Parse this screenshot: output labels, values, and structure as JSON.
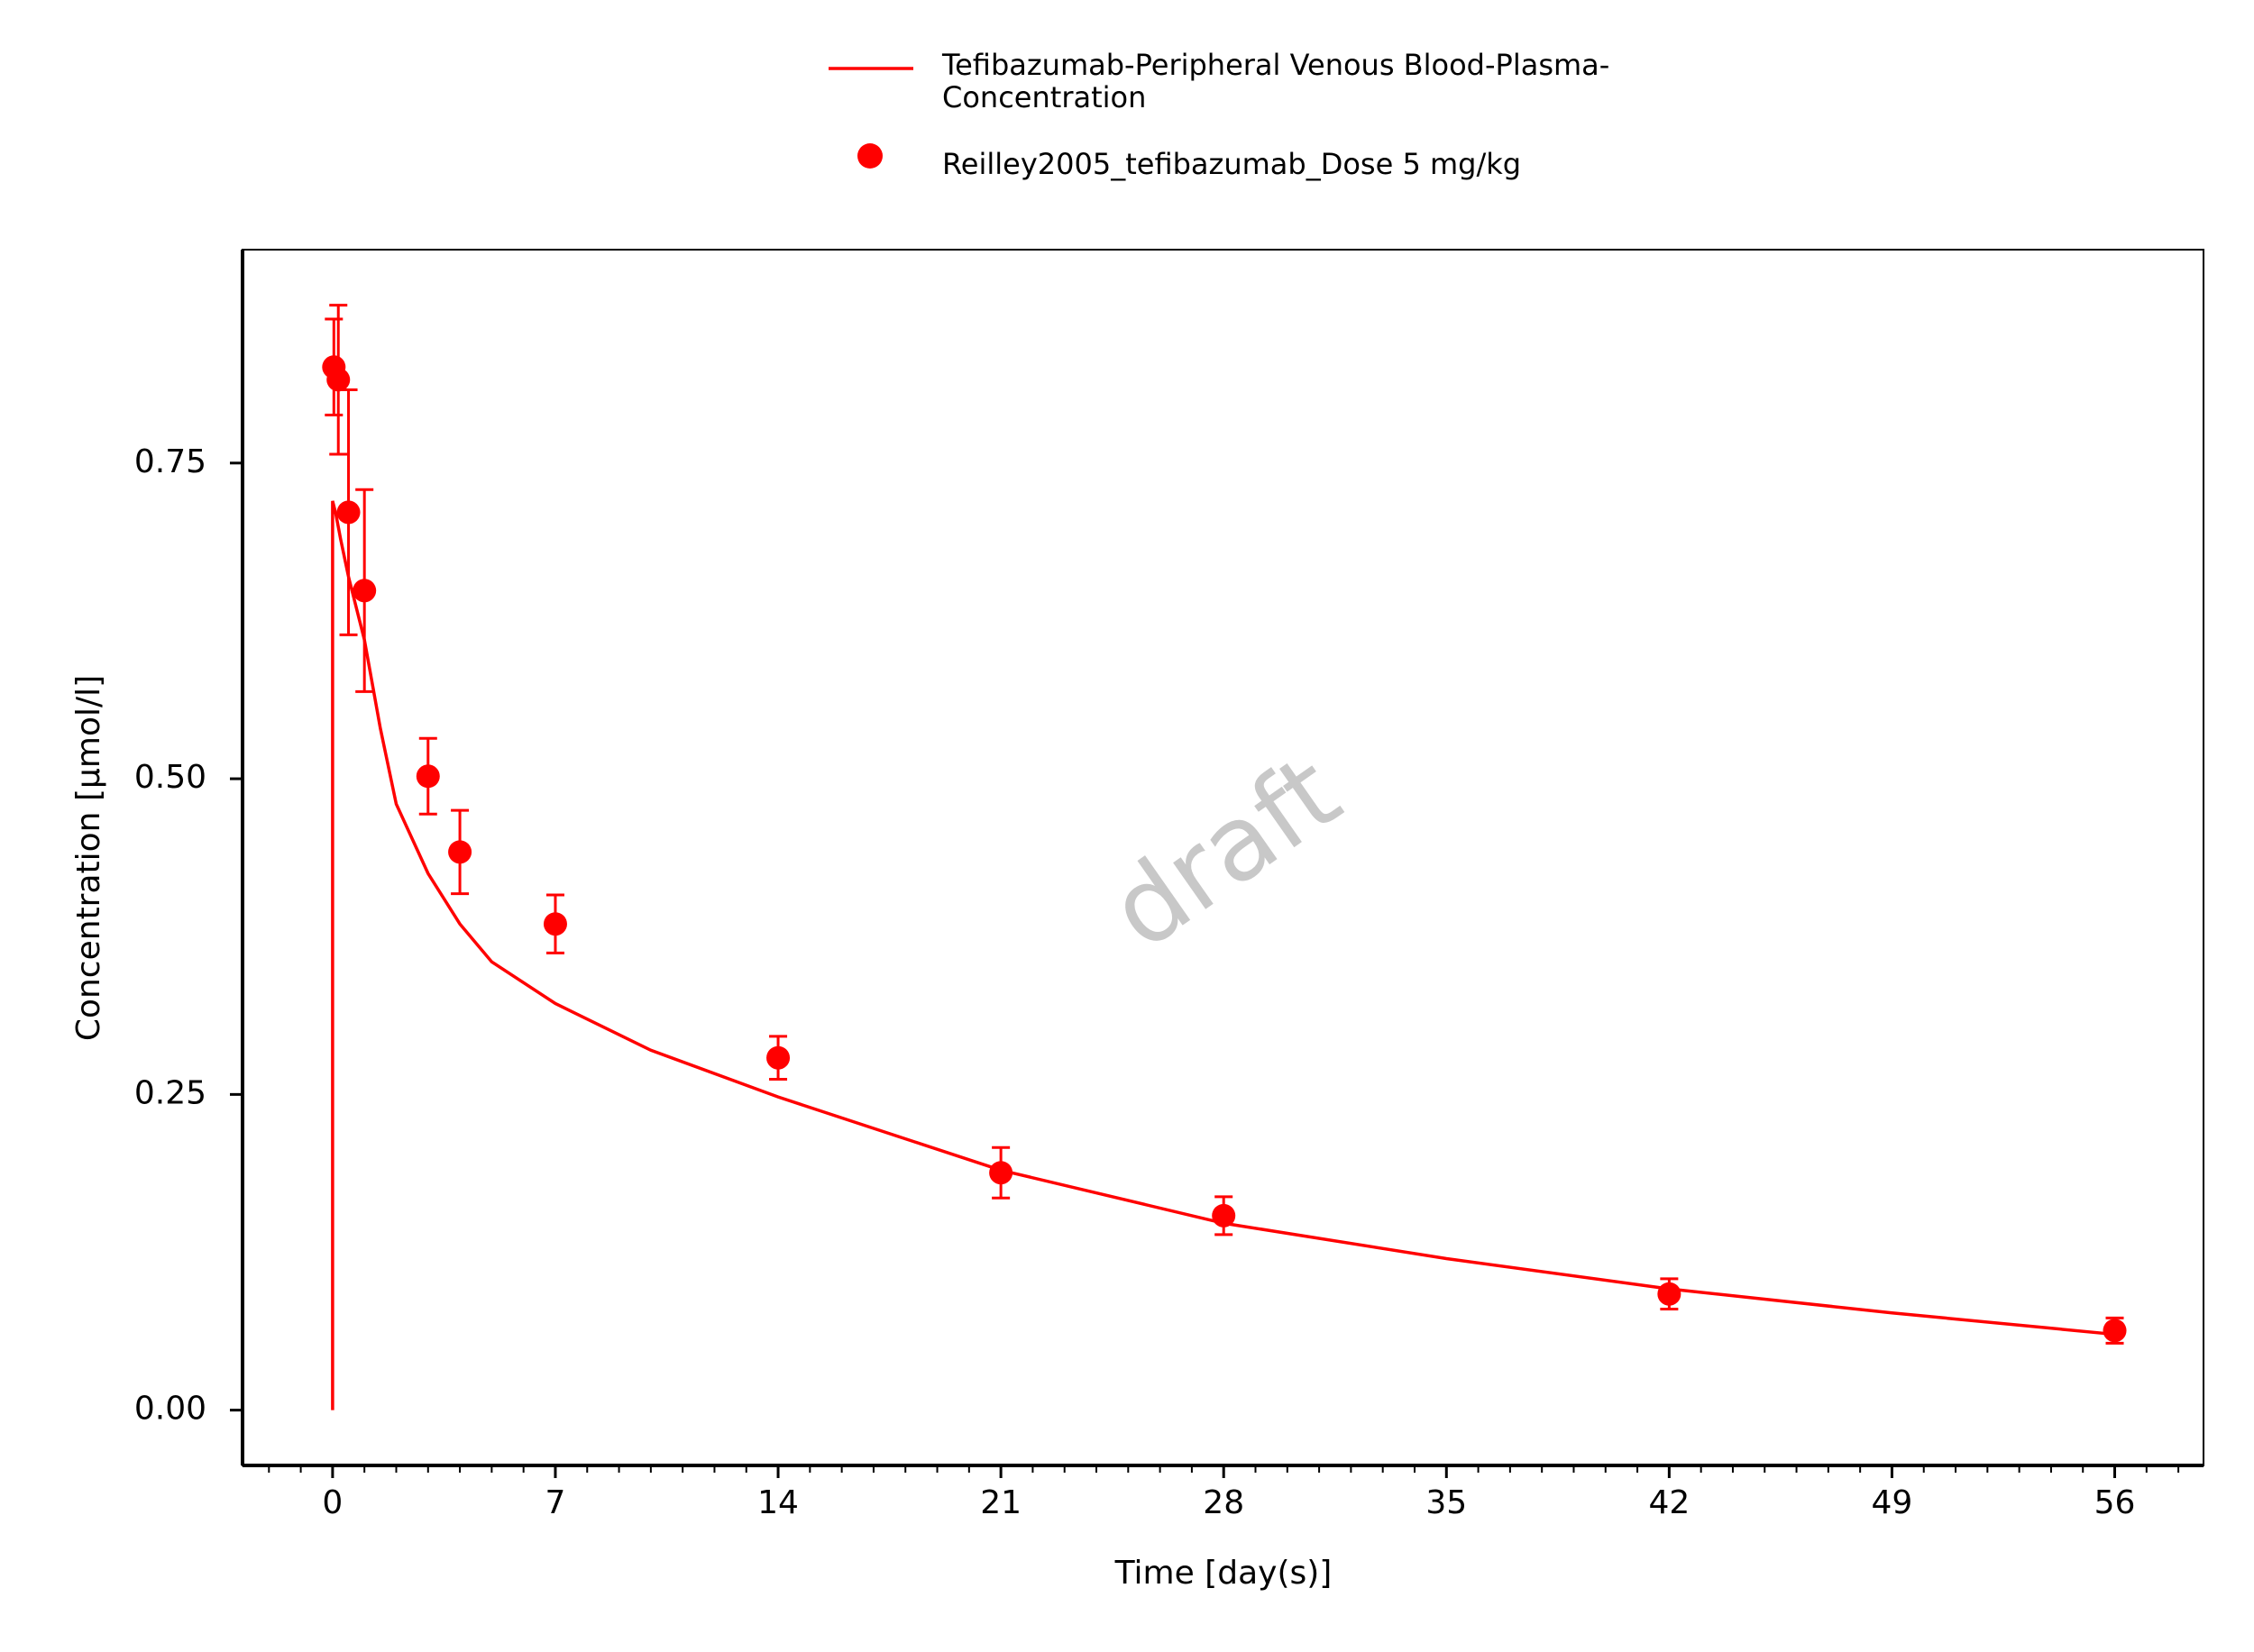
{
  "chart_data": {
    "type": "line",
    "xlabel": "Time [day(s)]",
    "ylabel": "Concentration [µmol/l]",
    "watermark": "draft",
    "xlim": [
      -2.83,
      58.79
    ],
    "ylim": [
      -0.0438,
      0.919
    ],
    "xticks": [
      0,
      7,
      14,
      21,
      28,
      35,
      42,
      49,
      56
    ],
    "xminorticks": [
      -2,
      -1,
      1,
      2,
      3,
      4,
      5,
      6,
      8,
      9,
      10,
      11,
      12,
      13,
      15,
      16,
      17,
      18,
      19,
      20,
      22,
      23,
      24,
      25,
      26,
      27,
      29,
      30,
      31,
      32,
      33,
      34,
      36,
      37,
      38,
      39,
      40,
      41,
      43,
      44,
      45,
      46,
      47,
      48,
      50,
      51,
      52,
      53,
      54,
      55,
      57,
      58
    ],
    "yticks": [
      {
        "value": 0,
        "label": "0.00"
      },
      {
        "value": 0.25,
        "label": "0.25"
      },
      {
        "value": 0.5,
        "label": "0.50"
      },
      {
        "value": 0.75,
        "label": "0.75"
      }
    ],
    "series": [
      {
        "name": "Tefibazumab-Peripheral Venous Blood-Plasma-Concentration",
        "color": "#ff0000",
        "type": "line",
        "x": [
          0,
          0,
          0.1,
          0.25,
          0.5,
          1,
          1.5,
          2,
          3,
          4,
          5,
          7,
          10,
          14,
          21,
          28,
          35,
          42,
          49,
          56
        ],
        "values": [
          0,
          0.72,
          0.71,
          0.69,
          0.66,
          0.61,
          0.54,
          0.48,
          0.425,
          0.385,
          0.355,
          0.322,
          0.285,
          0.248,
          0.19,
          0.148,
          0.12,
          0.096,
          0.077,
          0.06
        ]
      },
      {
        "name": "Reilley2005_tefibazumab_Dose 5 mg/kg",
        "color": "#ff0000",
        "type": "scatter",
        "x": [
          0.04,
          0.18,
          0.5,
          1,
          3,
          4,
          7,
          14,
          21,
          28,
          42,
          56
        ],
        "values": [
          0.826,
          0.816,
          0.711,
          0.649,
          0.502,
          0.442,
          0.385,
          0.279,
          0.188,
          0.154,
          0.092,
          0.063
        ],
        "errors": [
          0.038,
          0.059,
          0.097,
          0.08,
          0.03,
          0.033,
          0.023,
          0.017,
          0.02,
          0.015,
          0.012,
          0.01
        ]
      }
    ]
  }
}
